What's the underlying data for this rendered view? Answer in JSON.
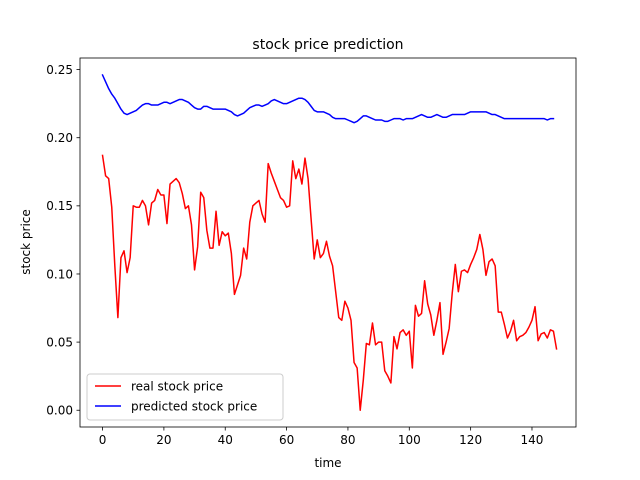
{
  "chart_data": {
    "type": "line",
    "title": "stock price prediction",
    "xlabel": "time",
    "ylabel": "stock price",
    "xlim": [
      -7.35,
      154.35
    ],
    "ylim": [
      -0.0123,
      0.2585
    ],
    "xticks": [
      0,
      20,
      40,
      60,
      80,
      100,
      120,
      140
    ],
    "yticks": [
      0.0,
      0.05,
      0.1,
      0.15,
      0.2,
      0.25
    ],
    "xtick_labels": [
      "0",
      "20",
      "40",
      "60",
      "80",
      "100",
      "120",
      "140"
    ],
    "ytick_labels": [
      "0.00",
      "0.05",
      "0.10",
      "0.15",
      "0.20",
      "0.25"
    ],
    "grid": false,
    "legend_position": "lower-left",
    "series": [
      {
        "name": "real stock price",
        "color": "#ff0000",
        "values": [
          0.187,
          0.172,
          0.17,
          0.149,
          0.106,
          0.068,
          0.112,
          0.117,
          0.101,
          0.112,
          0.15,
          0.149,
          0.149,
          0.154,
          0.15,
          0.136,
          0.152,
          0.154,
          0.162,
          0.158,
          0.158,
          0.137,
          0.166,
          0.168,
          0.17,
          0.167,
          0.159,
          0.148,
          0.15,
          0.136,
          0.103,
          0.12,
          0.16,
          0.156,
          0.132,
          0.119,
          0.119,
          0.146,
          0.121,
          0.131,
          0.128,
          0.13,
          0.115,
          0.085,
          0.092,
          0.099,
          0.119,
          0.111,
          0.138,
          0.15,
          0.152,
          0.154,
          0.144,
          0.138,
          0.181,
          0.174,
          0.168,
          0.162,
          0.156,
          0.154,
          0.149,
          0.15,
          0.183,
          0.17,
          0.177,
          0.166,
          0.185,
          0.17,
          0.14,
          0.111,
          0.125,
          0.112,
          0.115,
          0.124,
          0.113,
          0.106,
          0.087,
          0.068,
          0.066,
          0.08,
          0.075,
          0.066,
          0.035,
          0.031,
          0.0,
          0.022,
          0.049,
          0.048,
          0.064,
          0.048,
          0.05,
          0.05,
          0.029,
          0.025,
          0.02,
          0.054,
          0.045,
          0.057,
          0.059,
          0.055,
          0.058,
          0.031,
          0.077,
          0.069,
          0.071,
          0.095,
          0.078,
          0.07,
          0.055,
          0.066,
          0.079,
          0.041,
          0.05,
          0.06,
          0.086,
          0.107,
          0.087,
          0.102,
          0.103,
          0.101,
          0.107,
          0.112,
          0.118,
          0.129,
          0.118,
          0.099,
          0.109,
          0.111,
          0.106,
          0.072,
          0.072,
          0.063,
          0.053,
          0.058,
          0.066,
          0.051,
          0.054,
          0.055,
          0.057,
          0.061,
          0.066,
          0.076,
          0.051,
          0.056,
          0.057,
          0.053,
          0.059,
          0.058,
          0.045
        ]
      },
      {
        "name": "predicted stock price",
        "color": "#0000ff",
        "values": [
          0.246,
          0.241,
          0.236,
          0.232,
          0.229,
          0.225,
          0.221,
          0.218,
          0.217,
          0.218,
          0.219,
          0.22,
          0.222,
          0.224,
          0.225,
          0.225,
          0.224,
          0.224,
          0.224,
          0.225,
          0.226,
          0.226,
          0.225,
          0.226,
          0.227,
          0.228,
          0.228,
          0.227,
          0.226,
          0.224,
          0.222,
          0.221,
          0.221,
          0.223,
          0.223,
          0.222,
          0.221,
          0.221,
          0.221,
          0.221,
          0.221,
          0.22,
          0.219,
          0.217,
          0.216,
          0.217,
          0.218,
          0.22,
          0.222,
          0.223,
          0.224,
          0.224,
          0.223,
          0.224,
          0.225,
          0.227,
          0.228,
          0.227,
          0.226,
          0.225,
          0.225,
          0.226,
          0.227,
          0.228,
          0.229,
          0.229,
          0.228,
          0.226,
          0.223,
          0.22,
          0.219,
          0.219,
          0.219,
          0.218,
          0.217,
          0.215,
          0.214,
          0.214,
          0.214,
          0.214,
          0.213,
          0.212,
          0.211,
          0.212,
          0.214,
          0.216,
          0.216,
          0.215,
          0.214,
          0.213,
          0.213,
          0.213,
          0.212,
          0.212,
          0.213,
          0.214,
          0.214,
          0.214,
          0.213,
          0.214,
          0.214,
          0.214,
          0.215,
          0.216,
          0.217,
          0.216,
          0.215,
          0.215,
          0.216,
          0.217,
          0.216,
          0.215,
          0.215,
          0.216,
          0.217,
          0.217,
          0.217,
          0.217,
          0.217,
          0.218,
          0.219,
          0.219,
          0.219,
          0.219,
          0.219,
          0.219,
          0.218,
          0.217,
          0.217,
          0.216,
          0.215,
          0.214,
          0.214,
          0.214,
          0.214,
          0.214,
          0.214,
          0.214,
          0.214,
          0.214,
          0.214,
          0.214,
          0.214,
          0.214,
          0.214,
          0.213,
          0.214,
          0.214
        ]
      }
    ]
  }
}
